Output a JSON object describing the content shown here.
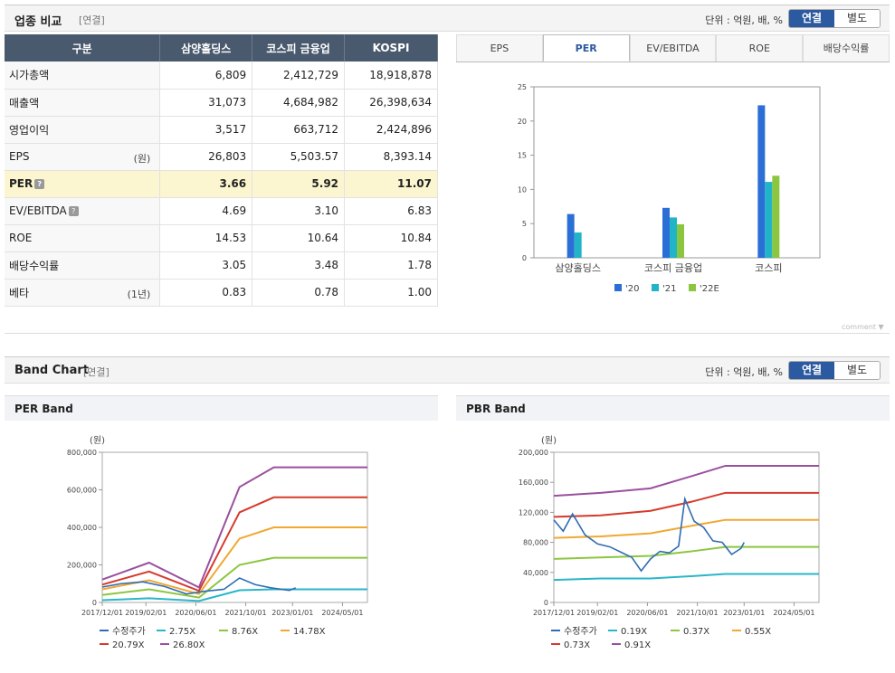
{
  "section1": {
    "title": "업종 비교",
    "sub": "[연결]",
    "unit": "단위 : 억원, 배, %",
    "toggle_on": "연결",
    "toggle_off": "별도"
  },
  "table": {
    "headers": [
      "구분",
      "삼양홀딩스",
      "코스피 금융업",
      "KOSPI"
    ],
    "rows": [
      {
        "label": "시가총액",
        "unit": "",
        "q": false,
        "vals": [
          "6,809",
          "2,412,729",
          "18,918,878"
        ]
      },
      {
        "label": "매출액",
        "unit": "",
        "q": false,
        "vals": [
          "31,073",
          "4,684,982",
          "26,398,634"
        ]
      },
      {
        "label": "영업이익",
        "unit": "",
        "q": false,
        "vals": [
          "3,517",
          "663,712",
          "2,424,896"
        ]
      },
      {
        "label": "EPS",
        "unit": "(원)",
        "q": false,
        "vals": [
          "26,803",
          "5,503.57",
          "8,393.14"
        ]
      },
      {
        "label": "PER",
        "unit": "",
        "q": true,
        "vals": [
          "3.66",
          "5.92",
          "11.07"
        ]
      },
      {
        "label": "EV/EBITDA",
        "unit": "",
        "q": true,
        "vals": [
          "4.69",
          "3.10",
          "6.83"
        ]
      },
      {
        "label": "ROE",
        "unit": "",
        "q": false,
        "vals": [
          "14.53",
          "10.64",
          "10.84"
        ]
      },
      {
        "label": "배당수익률",
        "unit": "",
        "q": false,
        "vals": [
          "3.05",
          "3.48",
          "1.78"
        ]
      },
      {
        "label": "베타",
        "unit": "(1년)",
        "q": false,
        "vals": [
          "0.83",
          "0.78",
          "1.00"
        ]
      }
    ]
  },
  "tabs": [
    "EPS",
    "PER",
    "EV/EBITDA",
    "ROE",
    "배당수익률"
  ],
  "active_tab": "PER",
  "comment_label": "comment ▼",
  "section2": {
    "title": "Band Chart",
    "sub": "[연결]",
    "unit": "단위 : 억원, 배, %",
    "toggle_on": "연결",
    "toggle_off": "별도"
  },
  "per_band_title": "PER Band",
  "pbr_band_title": "PBR Band",
  "colors": {
    "bar20": "#2b6fd6",
    "bar21": "#21b4c9",
    "bar22": "#8cc63f",
    "price": "#2f6db3",
    "b1": "#29b6c9",
    "b2": "#8cc63f",
    "b3": "#f0a830",
    "b4": "#d63a2c",
    "b5": "#9b4f9e"
  },
  "chart_data": [
    {
      "type": "bar",
      "categories": [
        "삼양홀딩스",
        "코스피 금융업",
        "코스피"
      ],
      "series": [
        {
          "name": "'20",
          "values": [
            6.4,
            7.3,
            22.3
          ]
        },
        {
          "name": "'21",
          "values": [
            3.7,
            5.9,
            11.1
          ]
        },
        {
          "name": "'22E",
          "values": [
            null,
            4.9,
            12.0
          ]
        }
      ],
      "ylim": [
        0,
        25
      ],
      "yticks": [
        0,
        5,
        10,
        15,
        20,
        25
      ]
    },
    {
      "type": "line",
      "title": "PER Band",
      "ylabel": "(원)",
      "ylim": [
        0,
        800000
      ],
      "yticks": [
        "0",
        "200,000",
        "400,000",
        "600,000",
        "800,000"
      ],
      "xticks": [
        "2017/12/01",
        "2019/02/01",
        "2020/06/01",
        "2021/10/01",
        "2023/01/01",
        "2024/05/01"
      ],
      "x": [
        "2017/12",
        "2019/03",
        "2020/07",
        "2021/08",
        "2022/07",
        "2025/01"
      ],
      "series": [
        {
          "name": "2.75X",
          "values": [
            12000,
            22000,
            8000,
            65000,
            70000,
            70000
          ]
        },
        {
          "name": "8.76X",
          "values": [
            40000,
            70000,
            26000,
            200000,
            238000,
            238000
          ]
        },
        {
          "name": "14.78X",
          "values": [
            70000,
            118000,
            45000,
            340000,
            400000,
            400000
          ]
        },
        {
          "name": "20.79X",
          "values": [
            95000,
            165000,
            62000,
            480000,
            560000,
            560000
          ]
        },
        {
          "name": "26.80X",
          "values": [
            122000,
            212000,
            80000,
            615000,
            720000,
            720000
          ]
        }
      ],
      "price": {
        "name": "수정주가",
        "x": [
          "2017/12",
          "2018/06",
          "2019/01",
          "2019/08",
          "2020/03",
          "2020/09",
          "2021/03",
          "2021/08",
          "2022/01",
          "2022/06",
          "2022/12",
          "2023/02"
        ],
        "values": [
          82000,
          100000,
          110000,
          85000,
          45000,
          60000,
          70000,
          130000,
          95000,
          78000,
          64000,
          78000
        ]
      }
    },
    {
      "type": "line",
      "title": "PBR Band",
      "ylabel": "(원)",
      "ylim": [
        0,
        200000
      ],
      "yticks": [
        "0",
        "40,000",
        "80,000",
        "120,000",
        "160,000",
        "200,000"
      ],
      "xticks": [
        "2017/12/01",
        "2019/02/01",
        "2020/06/01",
        "2021/10/01",
        "2023/01/01",
        "2024/05/01"
      ],
      "x": [
        "2017/12",
        "2019/03",
        "2020/07",
        "2021/08",
        "2022/07",
        "2025/01"
      ],
      "series": [
        {
          "name": "0.19X",
          "values": [
            30000,
            32000,
            32000,
            35000,
            38000,
            38000
          ]
        },
        {
          "name": "0.37X",
          "values": [
            58000,
            60000,
            62000,
            68000,
            74000,
            74000
          ]
        },
        {
          "name": "0.55X",
          "values": [
            86000,
            88000,
            92000,
            102000,
            110000,
            110000
          ]
        },
        {
          "name": "0.73X",
          "values": [
            114000,
            116000,
            122000,
            134000,
            146000,
            146000
          ]
        },
        {
          "name": "0.91X",
          "values": [
            142000,
            146000,
            152000,
            168000,
            182000,
            182000
          ]
        }
      ],
      "price": {
        "name": "수정주가",
        "x": [
          "2017/12",
          "2018/03",
          "2018/06",
          "2018/10",
          "2019/02",
          "2019/06",
          "2019/10",
          "2020/01",
          "2020/04",
          "2020/07",
          "2020/10",
          "2021/01",
          "2021/04",
          "2021/06",
          "2021/09",
          "2021/12",
          "2022/03",
          "2022/06",
          "2022/09",
          "2022/12",
          "2023/01"
        ],
        "values": [
          110000,
          95000,
          118000,
          90000,
          78000,
          74000,
          66000,
          60000,
          42000,
          58000,
          68000,
          66000,
          75000,
          138000,
          108000,
          100000,
          82000,
          80000,
          64000,
          72000,
          80000
        ]
      }
    }
  ]
}
